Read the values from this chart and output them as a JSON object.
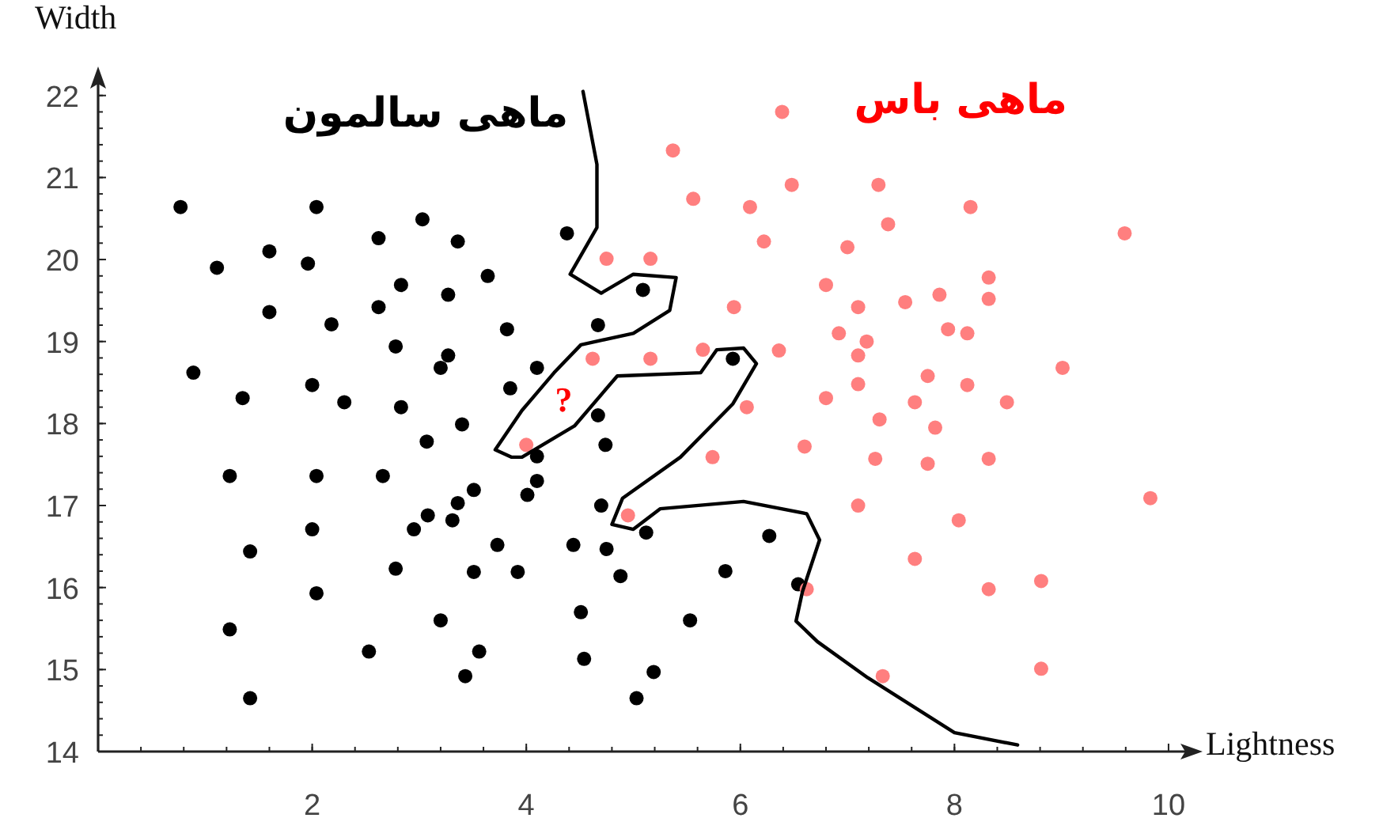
{
  "chart_data": {
    "type": "scatter",
    "xlabel": "Lightness",
    "ylabel": "Width",
    "xlim": [
      0,
      10.2
    ],
    "ylim": [
      14,
      22.2
    ],
    "xticks": [
      2,
      4,
      6,
      8,
      10
    ],
    "yticks": [
      14,
      15,
      16,
      17,
      18,
      19,
      20,
      21,
      22
    ],
    "marker": "circle",
    "series": [
      {
        "name": "ماهی سالمون",
        "color": "#000000",
        "x": [
          4.38,
          5.09,
          4.67,
          4.1,
          5.93,
          4.67,
          4.74,
          4.1,
          4.1,
          4.01,
          4.7,
          5.12,
          4.44,
          4.75,
          4.88,
          6.27,
          5.86,
          6.54,
          4.51,
          5.53,
          4.54,
          5.19,
          5.03,
          0.77,
          2.04,
          1.11,
          1.6,
          1.96,
          2.62,
          3.03,
          3.36,
          3.64,
          2.83,
          3.27,
          1.6,
          2.62,
          2.18,
          2.78,
          3.82,
          3.27,
          3.2,
          0.89,
          2.0,
          1.35,
          2.3,
          2.83,
          3.85,
          3.4,
          3.07,
          1.23,
          2.04,
          2.66,
          3.51,
          3.36,
          3.08,
          3.31,
          2.95,
          2.0,
          1.42,
          2.78,
          3.51,
          3.92,
          3.73,
          2.04,
          1.23,
          3.2,
          2.53,
          3.56,
          3.43,
          1.42
        ],
        "values": [
          20.32,
          19.63,
          19.2,
          18.68,
          18.79,
          18.1,
          17.74,
          17.6,
          17.3,
          17.13,
          17.0,
          16.67,
          16.52,
          16.47,
          16.14,
          16.63,
          16.2,
          16.04,
          15.7,
          15.6,
          15.13,
          14.97,
          14.65,
          20.64,
          20.64,
          19.9,
          20.1,
          19.95,
          20.26,
          20.49,
          20.22,
          19.8,
          19.69,
          19.57,
          19.36,
          19.42,
          19.21,
          18.94,
          19.15,
          18.83,
          18.68,
          18.62,
          18.47,
          18.31,
          18.26,
          18.2,
          18.43,
          17.99,
          17.78,
          17.36,
          17.36,
          17.36,
          17.19,
          17.03,
          16.88,
          16.82,
          16.71,
          16.71,
          16.44,
          16.23,
          16.19,
          16.19,
          16.52,
          15.93,
          15.49,
          15.6,
          15.22,
          15.22,
          14.92,
          14.65
        ]
      },
      {
        "name": "ماهی باس",
        "color": "#ff7f7f",
        "x": [
          6.39,
          5.37,
          6.48,
          5.56,
          6.09,
          6.22,
          7.0,
          4.75,
          5.16,
          6.8,
          5.94,
          7.1,
          6.92,
          7.18,
          7.1,
          4.62,
          5.16,
          5.65,
          6.36,
          7.1,
          6.8,
          6.06,
          6.6,
          4.0,
          5.74,
          7.1,
          4.95,
          6.62,
          7.29,
          8.15,
          7.38,
          9.59,
          8.32,
          7.86,
          8.32,
          7.54,
          7.94,
          8.12,
          9.01,
          7.75,
          8.12,
          7.63,
          8.49,
          7.3,
          7.82,
          7.26,
          7.75,
          8.32,
          9.83,
          8.04,
          7.63,
          8.32,
          8.81,
          7.33,
          8.81
        ],
        "values": [
          21.8,
          21.33,
          20.91,
          20.74,
          20.64,
          20.22,
          20.15,
          20.01,
          20.01,
          19.69,
          19.42,
          19.42,
          19.1,
          19.0,
          18.83,
          18.79,
          18.79,
          18.9,
          18.89,
          18.48,
          18.31,
          18.2,
          17.72,
          17.74,
          17.59,
          17.0,
          16.88,
          15.98,
          20.91,
          20.64,
          20.43,
          20.32,
          19.78,
          19.57,
          19.52,
          19.48,
          19.15,
          19.1,
          18.68,
          18.58,
          18.47,
          18.26,
          18.26,
          18.05,
          17.95,
          17.57,
          17.51,
          17.57,
          17.09,
          16.82,
          16.35,
          15.98,
          16.08,
          14.92,
          15.01
        ]
      },
      {
        "color": "#000000",
        "type": "line",
        "marker": "none",
        "x": [
          4.53,
          4.66,
          4.66,
          4.41,
          4.7,
          5.0,
          5.4,
          5.34,
          5.0,
          4.51,
          4.26,
          3.96,
          3.71,
          3.86,
          3.96,
          4.45,
          4.85,
          5.63,
          5.78,
          6.03,
          6.15,
          5.93,
          5.44,
          4.9,
          4.8,
          5.0,
          5.25,
          6.03,
          6.62,
          6.74,
          6.58,
          6.52,
          6.72,
          7.19,
          8.0,
          8.59
        ],
        "values": [
          22.05,
          21.16,
          20.39,
          19.82,
          19.59,
          19.82,
          19.78,
          19.38,
          19.1,
          18.96,
          18.62,
          18.16,
          17.68,
          17.59,
          17.59,
          17.97,
          18.58,
          18.62,
          18.9,
          18.92,
          18.73,
          18.24,
          17.59,
          17.09,
          16.77,
          16.71,
          16.96,
          17.05,
          16.9,
          16.58,
          15.95,
          15.59,
          15.34,
          14.9,
          14.23,
          14.08
        ]
      }
    ],
    "annotations": [
      "?"
    ]
  }
}
